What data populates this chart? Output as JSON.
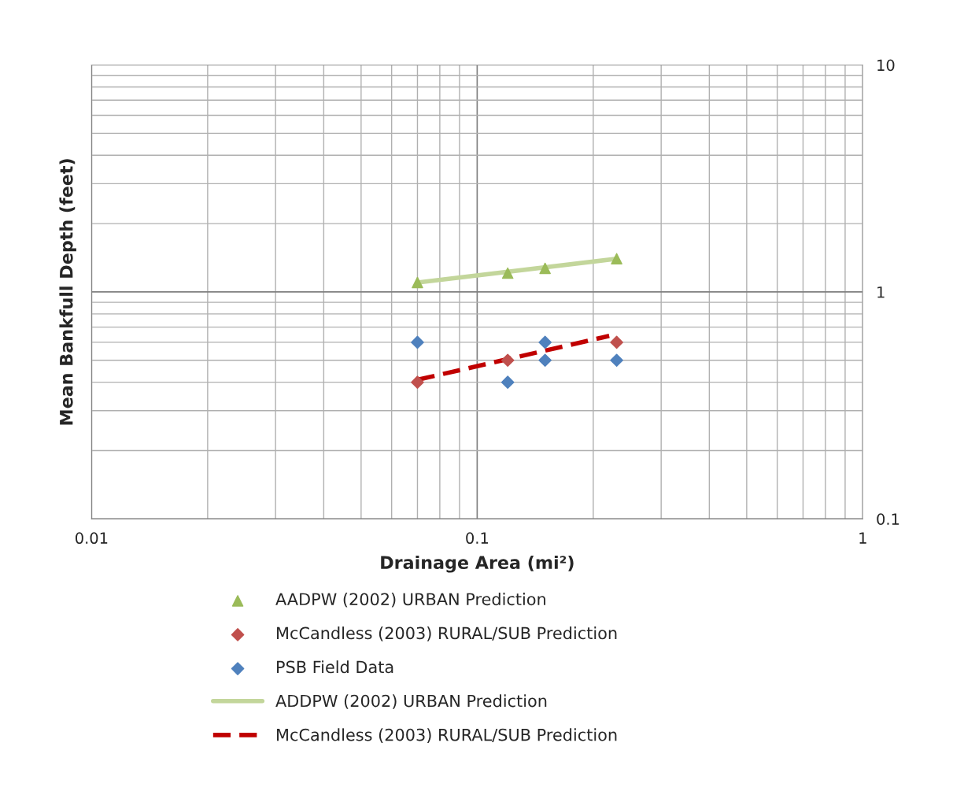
{
  "chart_data": {
    "type": "scatter",
    "xlabel": "Drainage Area (mi²)",
    "ylabel": "Mean Bankfull Depth (feet)",
    "log": "xy",
    "xlim": [
      0.01,
      1
    ],
    "ylim": [
      0.1,
      10
    ],
    "xticks": [
      0.01,
      0.1,
      1
    ],
    "yticks": [
      0.1,
      1,
      10
    ],
    "grid": true,
    "legend": "bottom",
    "series": [
      {
        "name": "AADPW (2002) URBAN Prediction",
        "marker": "triangle",
        "color": "#9bbb59",
        "x": [
          0.07,
          0.12,
          0.15,
          0.23
        ],
        "values": [
          1.1,
          1.21,
          1.27,
          1.4
        ]
      },
      {
        "name": "McCandless (2003) RURAL/SUB Prediction",
        "marker": "diamond",
        "color": "#c0504d",
        "x": [
          0.07,
          0.12,
          0.23
        ],
        "values": [
          0.4,
          0.5,
          0.6
        ]
      },
      {
        "name": "PSB Field Data",
        "marker": "diamond",
        "color": "#4f81bd",
        "x": [
          0.07,
          0.12,
          0.15,
          0.15,
          0.23
        ],
        "values": [
          0.6,
          0.4,
          0.6,
          0.5,
          0.5
        ]
      },
      {
        "name": "ADDPW (2002) URBAN Prediction",
        "type": "line",
        "marker": "none",
        "line_style": "solid",
        "color": "#c3d69b",
        "x": [
          0.07,
          0.23
        ],
        "values": [
          1.1,
          1.4
        ]
      },
      {
        "name": "McCandless (2003) RURAL/SUB Prediction",
        "type": "line",
        "marker": "none",
        "line_style": "dashed",
        "color": "#c00000",
        "x": [
          0.07,
          0.22
        ],
        "values": [
          0.41,
          0.64
        ]
      }
    ]
  }
}
